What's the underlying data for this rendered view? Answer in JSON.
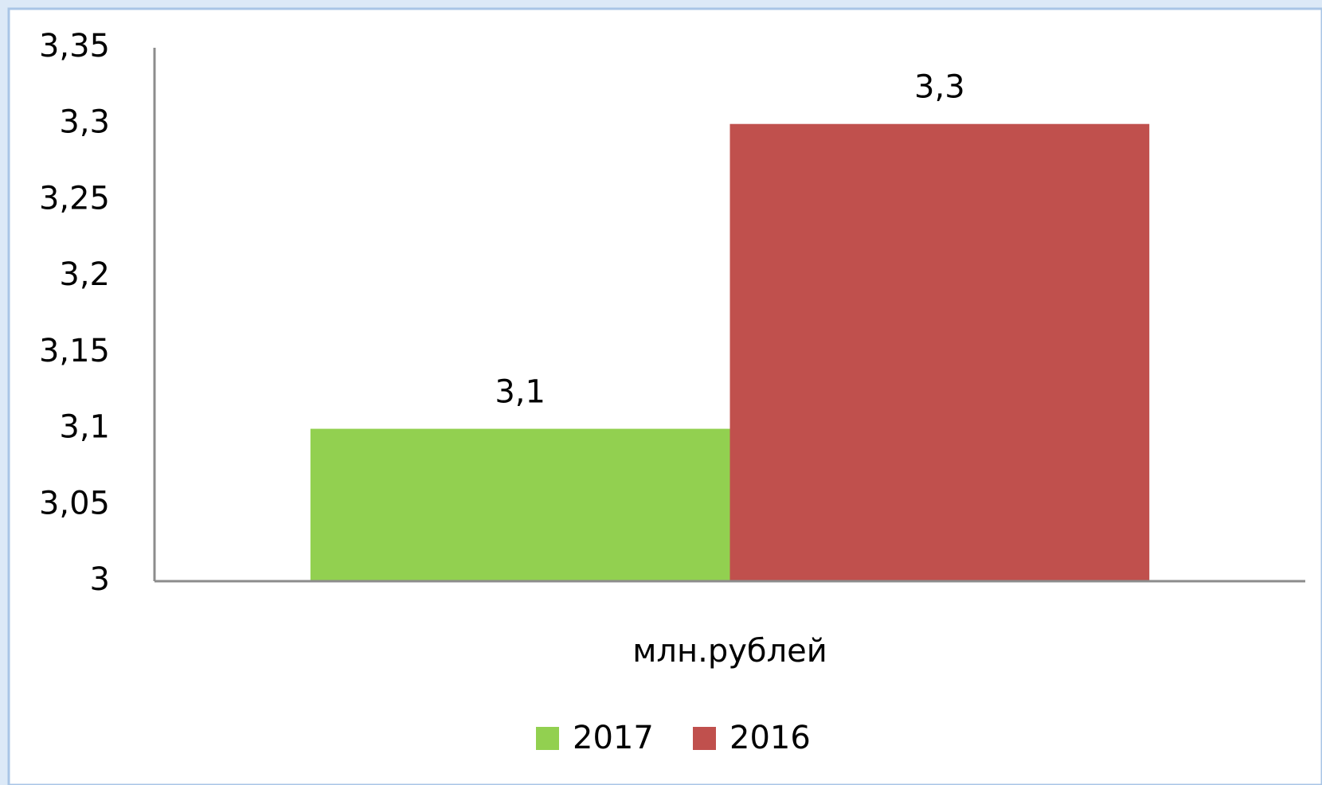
{
  "chart_data": {
    "type": "bar",
    "categories": [
      "млн.рублей"
    ],
    "series": [
      {
        "name": "2017",
        "color": "#92d050",
        "values": [
          3.1
        ],
        "value_labels": [
          "3,1"
        ]
      },
      {
        "name": "2016",
        "color": "#c0504d",
        "values": [
          3.3
        ],
        "value_labels": [
          "3,3"
        ]
      }
    ],
    "ylim": [
      3,
      3.35
    ],
    "yticks": [
      3,
      {
        "value": 3.05,
        "label": "3,05"
      },
      {
        "value": 3.1,
        "label": "3,1"
      },
      {
        "value": 3.15,
        "label": "3,15"
      },
      {
        "value": 3.2,
        "label": "3,2"
      },
      {
        "value": 3.25,
        "label": "3,25"
      },
      {
        "value": 3.3,
        "label": "3,3"
      },
      {
        "value": 3.35,
        "label": "3,35"
      }
    ],
    "grid": false,
    "legend": "bottom"
  }
}
